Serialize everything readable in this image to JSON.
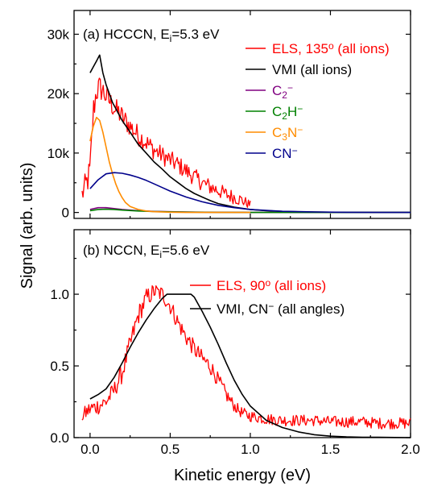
{
  "chart_data": [
    {
      "type": "line",
      "panel_label": {
        "prefix": "(a) HCCCN, E",
        "sub": "i",
        "suffix": "=5.3 eV"
      },
      "ylabel": "Signal (arb. units)",
      "xlabel": "",
      "xlim": [
        -0.1,
        2.0
      ],
      "ylim": [
        -1000,
        34000
      ],
      "x_ticks": [
        0.0,
        0.5,
        1.0,
        1.5,
        2.0
      ],
      "y_ticks": [
        0,
        10000,
        20000,
        30000
      ],
      "y_tick_labels": [
        "0",
        "10k",
        "20k",
        "30k"
      ],
      "legend": "top-right",
      "series": [
        {
          "key": "els",
          "legend": {
            "text": "ELS, 135",
            "sup": "o",
            "tail": " (all ions)"
          },
          "color": "#ff0000",
          "noisy": true,
          "x": [
            -0.05,
            -0.02,
            0.0,
            0.02,
            0.04,
            0.06,
            0.08,
            0.1,
            0.12,
            0.14,
            0.16,
            0.18,
            0.2,
            0.25,
            0.3,
            0.35,
            0.4,
            0.45,
            0.5,
            0.55,
            0.6,
            0.65,
            0.7,
            0.75,
            0.8,
            0.85,
            0.9,
            0.95,
            1.0
          ],
          "y": [
            3000,
            5000,
            7000,
            17000,
            20500,
            21000,
            20500,
            19500,
            18800,
            18000,
            17200,
            16800,
            16000,
            14500,
            13000,
            11800,
            10500,
            9600,
            8800,
            8000,
            7000,
            6000,
            5000,
            4300,
            3700,
            3000,
            2600,
            2000,
            1300
          ],
          "noise_amp": [
            2000,
            2500,
            2500,
            2500,
            2500,
            2200,
            2200,
            2000,
            2000,
            2000,
            2000,
            2000,
            2000,
            1800,
            1800,
            1700,
            1700,
            1600,
            1600,
            1600,
            1500,
            1500,
            1400,
            1400,
            1300,
            1300,
            1200,
            1100,
            700
          ]
        },
        {
          "key": "vmi",
          "legend": {
            "text": "VMI (all ions)"
          },
          "color": "#000000",
          "x": [
            0.0,
            0.02,
            0.04,
            0.06,
            0.08,
            0.1,
            0.12,
            0.14,
            0.16,
            0.18,
            0.2,
            0.25,
            0.3,
            0.35,
            0.4,
            0.45,
            0.5,
            0.55,
            0.6,
            0.65,
            0.7,
            0.75,
            0.8,
            0.9,
            1.0,
            1.1,
            1.2,
            1.3,
            1.4,
            1.5,
            1.6,
            1.7,
            1.8,
            1.9,
            2.0
          ],
          "y": [
            23500,
            24500,
            25500,
            26500,
            23500,
            21500,
            20000,
            18500,
            17500,
            16500,
            15500,
            13500,
            11500,
            10000,
            8500,
            7300,
            6000,
            5000,
            4000,
            3200,
            2600,
            2000,
            1500,
            900,
            500,
            300,
            180,
            110,
            70,
            40,
            20,
            10,
            5,
            2,
            0
          ]
        },
        {
          "key": "c2",
          "legend": {
            "text": "C",
            "sub": "2",
            "sup": "−"
          },
          "color": "#800080",
          "x": [
            0.0,
            0.05,
            0.1,
            0.15,
            0.2,
            0.3,
            0.4,
            0.6,
            0.8,
            1.0,
            1.5,
            2.0
          ],
          "y": [
            500,
            800,
            800,
            650,
            500,
            300,
            180,
            70,
            25,
            10,
            0,
            0
          ]
        },
        {
          "key": "c2h",
          "legend": {
            "text": "C",
            "sub": "2",
            "mid": "H",
            "sup": "−"
          },
          "color": "#008000",
          "x": [
            0.0,
            0.05,
            0.1,
            0.15,
            0.2,
            0.3,
            0.4,
            0.6,
            0.8,
            1.0,
            1.5,
            2.0
          ],
          "y": [
            300,
            500,
            550,
            500,
            400,
            250,
            150,
            60,
            20,
            8,
            0,
            0
          ]
        },
        {
          "key": "c3n",
          "legend": {
            "text": "C",
            "sub": "3",
            "mid": "N",
            "sup": "−"
          },
          "color": "#ff8c00",
          "x": [
            0.0,
            0.02,
            0.04,
            0.06,
            0.08,
            0.1,
            0.12,
            0.14,
            0.16,
            0.18,
            0.2,
            0.22,
            0.25,
            0.3,
            0.35,
            0.4,
            0.5,
            0.6,
            0.8,
            1.0
          ],
          "y": [
            12000,
            14500,
            16000,
            15500,
            13500,
            11000,
            8500,
            6500,
            4800,
            3500,
            2500,
            1700,
            1000,
            500,
            250,
            120,
            40,
            10,
            0,
            0
          ]
        },
        {
          "key": "cn",
          "legend": {
            "text": "CN",
            "sup": "−"
          },
          "color": "#00008b",
          "x": [
            0.0,
            0.05,
            0.1,
            0.15,
            0.2,
            0.25,
            0.3,
            0.35,
            0.4,
            0.45,
            0.5,
            0.6,
            0.7,
            0.8,
            0.9,
            1.0,
            1.2,
            1.4,
            1.6,
            1.8,
            2.0
          ],
          "y": [
            4000,
            5500,
            6500,
            6700,
            6600,
            6300,
            5900,
            5400,
            4800,
            4200,
            3600,
            2600,
            1800,
            1200,
            800,
            500,
            200,
            80,
            30,
            10,
            0
          ]
        }
      ]
    },
    {
      "type": "line",
      "panel_label": {
        "prefix": "(b) NCCN, E",
        "sub": "i",
        "suffix": "=5.6 eV"
      },
      "ylabel": "",
      "xlabel": "Kinetic energy (eV)",
      "xlim": [
        -0.1,
        2.0
      ],
      "ylim": [
        0.0,
        1.45
      ],
      "x_ticks": [
        0.0,
        0.5,
        1.0,
        1.5,
        2.0
      ],
      "x_tick_labels": [
        "0.0",
        "0.5",
        "1.0",
        "1.5",
        "2.0"
      ],
      "y_ticks": [
        0.0,
        0.5,
        1.0
      ],
      "y_tick_labels": [
        "0.0",
        "0.5",
        "1.0"
      ],
      "legend": "top-right",
      "series": [
        {
          "key": "els",
          "legend": {
            "text": "ELS, 90",
            "sup": "o",
            "tail": "  (all ions)"
          },
          "color": "#ff0000",
          "noisy": true,
          "x": [
            -0.05,
            0.0,
            0.05,
            0.1,
            0.15,
            0.2,
            0.25,
            0.3,
            0.35,
            0.4,
            0.45,
            0.5,
            0.55,
            0.6,
            0.65,
            0.7,
            0.75,
            0.8,
            0.85,
            0.9,
            0.95,
            1.0,
            1.1,
            1.2,
            1.3,
            1.4,
            1.5,
            1.6,
            1.7,
            1.8,
            1.9,
            2.0
          ],
          "y": [
            0.15,
            0.2,
            0.22,
            0.25,
            0.33,
            0.45,
            0.65,
            0.85,
            0.97,
            1.02,
            1.0,
            0.92,
            0.8,
            0.7,
            0.62,
            0.55,
            0.5,
            0.4,
            0.3,
            0.22,
            0.17,
            0.15,
            0.13,
            0.12,
            0.12,
            0.12,
            0.11,
            0.11,
            0.11,
            0.1,
            0.1,
            0.1
          ],
          "noise_amp": [
            0.05,
            0.06,
            0.06,
            0.06,
            0.06,
            0.07,
            0.07,
            0.07,
            0.07,
            0.06,
            0.06,
            0.06,
            0.06,
            0.06,
            0.06,
            0.06,
            0.06,
            0.05,
            0.05,
            0.04,
            0.04,
            0.04,
            0.04,
            0.04,
            0.04,
            0.04,
            0.04,
            0.04,
            0.04,
            0.04,
            0.04,
            0.04
          ]
        },
        {
          "key": "vmi",
          "legend": {
            "text": "VMI, CN",
            "sup": "−",
            "tail": " (all angles)"
          },
          "color": "#000000",
          "x": [
            0.0,
            0.05,
            0.1,
            0.15,
            0.2,
            0.25,
            0.3,
            0.35,
            0.4,
            0.45,
            0.48,
            0.5,
            0.55,
            0.6,
            0.63,
            0.65,
            0.7,
            0.75,
            0.8,
            0.85,
            0.9,
            0.95,
            1.0,
            1.1,
            1.2,
            1.3,
            1.4,
            1.5,
            1.6,
            1.7,
            1.8,
            1.9,
            2.0
          ],
          "y": [
            0.27,
            0.3,
            0.34,
            0.42,
            0.52,
            0.63,
            0.73,
            0.82,
            0.9,
            0.97,
            1.0,
            1.0,
            1.0,
            1.0,
            1.0,
            0.98,
            0.88,
            0.77,
            0.65,
            0.52,
            0.4,
            0.3,
            0.22,
            0.12,
            0.07,
            0.04,
            0.02,
            0.01,
            0.005,
            0.003,
            0.002,
            0.001,
            0.0
          ]
        }
      ]
    }
  ]
}
